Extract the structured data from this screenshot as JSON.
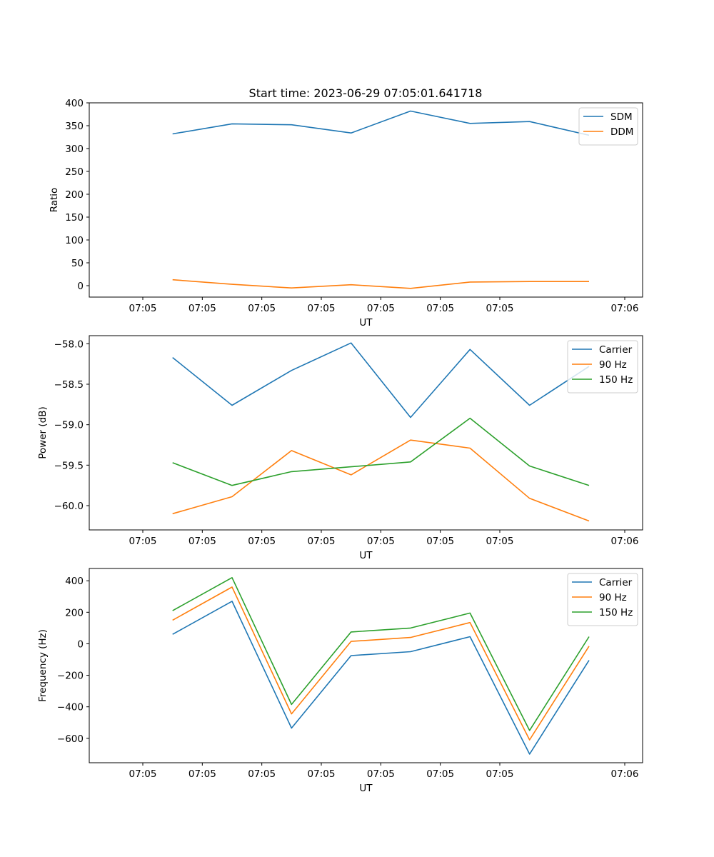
{
  "figure": {
    "title": "Start time: 2023-06-29 07:05:01.641718"
  },
  "chart_data": [
    {
      "type": "line",
      "title": "Start time: 2023-06-29 07:05:01.641718",
      "xlabel": "UT",
      "ylabel": "Ratio",
      "x_tick_labels": [
        "07:05",
        "07:05",
        "07:05",
        "07:05",
        "07:05",
        "07:05",
        "07:05",
        "07:06"
      ],
      "y_ticks": [
        0,
        50,
        100,
        150,
        200,
        250,
        300,
        350,
        400
      ],
      "ylim": [
        -25,
        400
      ],
      "xlim": [
        -0.9,
        8.4
      ],
      "legend_position": "top-right",
      "series": [
        {
          "name": "SDM",
          "color": "#1f77b4",
          "x": [
            0.5,
            1.5,
            2.5,
            3.5,
            4.5,
            5.5,
            6.5,
            7.5
          ],
          "values": [
            332,
            354,
            352,
            334,
            382,
            355,
            359,
            329
          ]
        },
        {
          "name": "DDM",
          "color": "#ff7f0e",
          "x": [
            0.5,
            1.5,
            2.5,
            3.5,
            4.5,
            5.5,
            6.5,
            7.5
          ],
          "values": [
            13,
            3,
            -5,
            2,
            -6,
            8,
            9,
            9
          ]
        }
      ]
    },
    {
      "type": "line",
      "xlabel": "UT",
      "ylabel": "Power (dB)",
      "x_tick_labels": [
        "07:05",
        "07:05",
        "07:05",
        "07:05",
        "07:05",
        "07:05",
        "07:05",
        "07:06"
      ],
      "y_ticks": [
        -60.0,
        -59.5,
        -59.0,
        -58.5,
        -58.0
      ],
      "y_tick_labels": [
        "−60.0",
        "−59.5",
        "−59.0",
        "−58.5",
        "−58.0"
      ],
      "ylim": [
        -60.3,
        -57.9
      ],
      "xlim": [
        -0.9,
        8.4
      ],
      "legend_position": "top-right",
      "series": [
        {
          "name": "Carrier",
          "color": "#1f77b4",
          "x": [
            0.5,
            1.5,
            2.5,
            3.5,
            4.5,
            5.5,
            6.5,
            7.5
          ],
          "values": [
            -58.17,
            -58.76,
            -58.33,
            -57.99,
            -58.91,
            -58.07,
            -58.76,
            -58.28
          ]
        },
        {
          "name": "90 Hz",
          "color": "#ff7f0e",
          "x": [
            0.5,
            1.5,
            2.5,
            3.5,
            4.5,
            5.5,
            6.5,
            7.5
          ],
          "values": [
            -60.1,
            -59.89,
            -59.32,
            -59.62,
            -59.19,
            -59.29,
            -59.91,
            -60.19
          ]
        },
        {
          "name": "150 Hz",
          "color": "#2ca02c",
          "x": [
            0.5,
            1.5,
            2.5,
            3.5,
            4.5,
            5.5,
            6.5,
            7.5
          ],
          "values": [
            -59.47,
            -59.75,
            -59.58,
            -59.52,
            -59.46,
            -58.92,
            -59.51,
            -59.75
          ]
        }
      ]
    },
    {
      "type": "line",
      "xlabel": "UT",
      "ylabel": "Frequency (Hz)",
      "x_tick_labels": [
        "07:05",
        "07:05",
        "07:05",
        "07:05",
        "07:05",
        "07:05",
        "07:05",
        "07:06"
      ],
      "y_ticks": [
        -600,
        -400,
        -200,
        0,
        200,
        400
      ],
      "y_tick_labels": [
        "−600",
        "−400",
        "−200",
        "0",
        "200",
        "400"
      ],
      "ylim": [
        -755,
        478
      ],
      "xlim": [
        -0.9,
        8.4
      ],
      "legend_position": "top-right",
      "series": [
        {
          "name": "Carrier",
          "color": "#1f77b4",
          "x": [
            0.5,
            1.5,
            2.5,
            3.5,
            4.5,
            5.5,
            6.5,
            7.5
          ],
          "values": [
            60,
            270,
            -535,
            -75,
            -50,
            45,
            -700,
            -105
          ]
        },
        {
          "name": "90 Hz",
          "color": "#ff7f0e",
          "x": [
            0.5,
            1.5,
            2.5,
            3.5,
            4.5,
            5.5,
            6.5,
            7.5
          ],
          "values": [
            150,
            360,
            -445,
            15,
            40,
            135,
            -610,
            -15
          ]
        },
        {
          "name": "150 Hz",
          "color": "#2ca02c",
          "x": [
            0.5,
            1.5,
            2.5,
            3.5,
            4.5,
            5.5,
            6.5,
            7.5
          ],
          "values": [
            210,
            420,
            -385,
            75,
            100,
            195,
            -550,
            45
          ]
        }
      ]
    }
  ]
}
